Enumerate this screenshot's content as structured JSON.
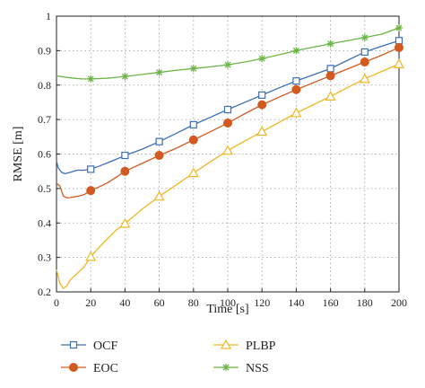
{
  "chart_data": {
    "type": "line",
    "xlabel": "Time [s]",
    "ylabel": "RMSE [m]",
    "xlim": [
      0,
      200
    ],
    "ylim": [
      0.2,
      1.0
    ],
    "xticks": [
      "0",
      "20",
      "40",
      "60",
      "80",
      "100",
      "120",
      "140",
      "160",
      "180",
      "200"
    ],
    "yticks": [
      "0.2",
      "0.3",
      "0.4",
      "0.5",
      "0.6",
      "0.7",
      "0.8",
      "0.9",
      "1"
    ],
    "grid": true,
    "legend_position": "bottom",
    "series": [
      {
        "name": "OCF",
        "color": "#3d6fb6",
        "marker": "square",
        "x": [
          0,
          1,
          3,
          5,
          8,
          12,
          16,
          20,
          25,
          30,
          35,
          40,
          50,
          60,
          70,
          80,
          90,
          100,
          110,
          120,
          130,
          140,
          150,
          160,
          170,
          180,
          190,
          200
        ],
        "y": [
          0.58,
          0.56,
          0.547,
          0.543,
          0.547,
          0.553,
          0.553,
          0.556,
          0.565,
          0.575,
          0.585,
          0.596,
          0.614,
          0.636,
          0.66,
          0.685,
          0.707,
          0.729,
          0.75,
          0.771,
          0.792,
          0.812,
          0.83,
          0.848,
          0.872,
          0.896,
          0.913,
          0.929
        ]
      },
      {
        "name": "EOC",
        "color": "#d2591f",
        "marker": "circle",
        "x": [
          0,
          2,
          4,
          6,
          8,
          12,
          16,
          20,
          25,
          30,
          35,
          40,
          50,
          60,
          70,
          80,
          90,
          100,
          110,
          120,
          130,
          140,
          150,
          160,
          170,
          180,
          190,
          200
        ],
        "y": [
          0.515,
          0.507,
          0.478,
          0.473,
          0.474,
          0.477,
          0.482,
          0.494,
          0.505,
          0.517,
          0.533,
          0.55,
          0.573,
          0.596,
          0.617,
          0.641,
          0.665,
          0.69,
          0.717,
          0.743,
          0.765,
          0.787,
          0.807,
          0.827,
          0.847,
          0.867,
          0.887,
          0.909
        ]
      },
      {
        "name": "PLBP",
        "color": "#f0b624",
        "marker": "triangle",
        "x": [
          0,
          2,
          4,
          6,
          8,
          12,
          16,
          20,
          25,
          30,
          35,
          40,
          50,
          60,
          70,
          80,
          90,
          100,
          110,
          120,
          130,
          140,
          150,
          160,
          170,
          180,
          190,
          200
        ],
        "y": [
          0.265,
          0.225,
          0.21,
          0.218,
          0.235,
          0.253,
          0.272,
          0.302,
          0.33,
          0.355,
          0.38,
          0.398,
          0.44,
          0.477,
          0.511,
          0.545,
          0.578,
          0.61,
          0.638,
          0.665,
          0.692,
          0.719,
          0.743,
          0.767,
          0.793,
          0.818,
          0.84,
          0.861
        ]
      },
      {
        "name": "NSS",
        "color": "#6db548",
        "marker": "asterisk",
        "x": [
          0,
          5,
          10,
          15,
          20,
          30,
          40,
          50,
          60,
          70,
          80,
          90,
          100,
          110,
          120,
          130,
          140,
          150,
          160,
          170,
          180,
          190,
          200
        ],
        "y": [
          0.827,
          0.823,
          0.82,
          0.818,
          0.818,
          0.82,
          0.825,
          0.831,
          0.837,
          0.843,
          0.848,
          0.853,
          0.859,
          0.867,
          0.877,
          0.888,
          0.9,
          0.91,
          0.92,
          0.929,
          0.938,
          0.948,
          0.966
        ]
      }
    ]
  }
}
